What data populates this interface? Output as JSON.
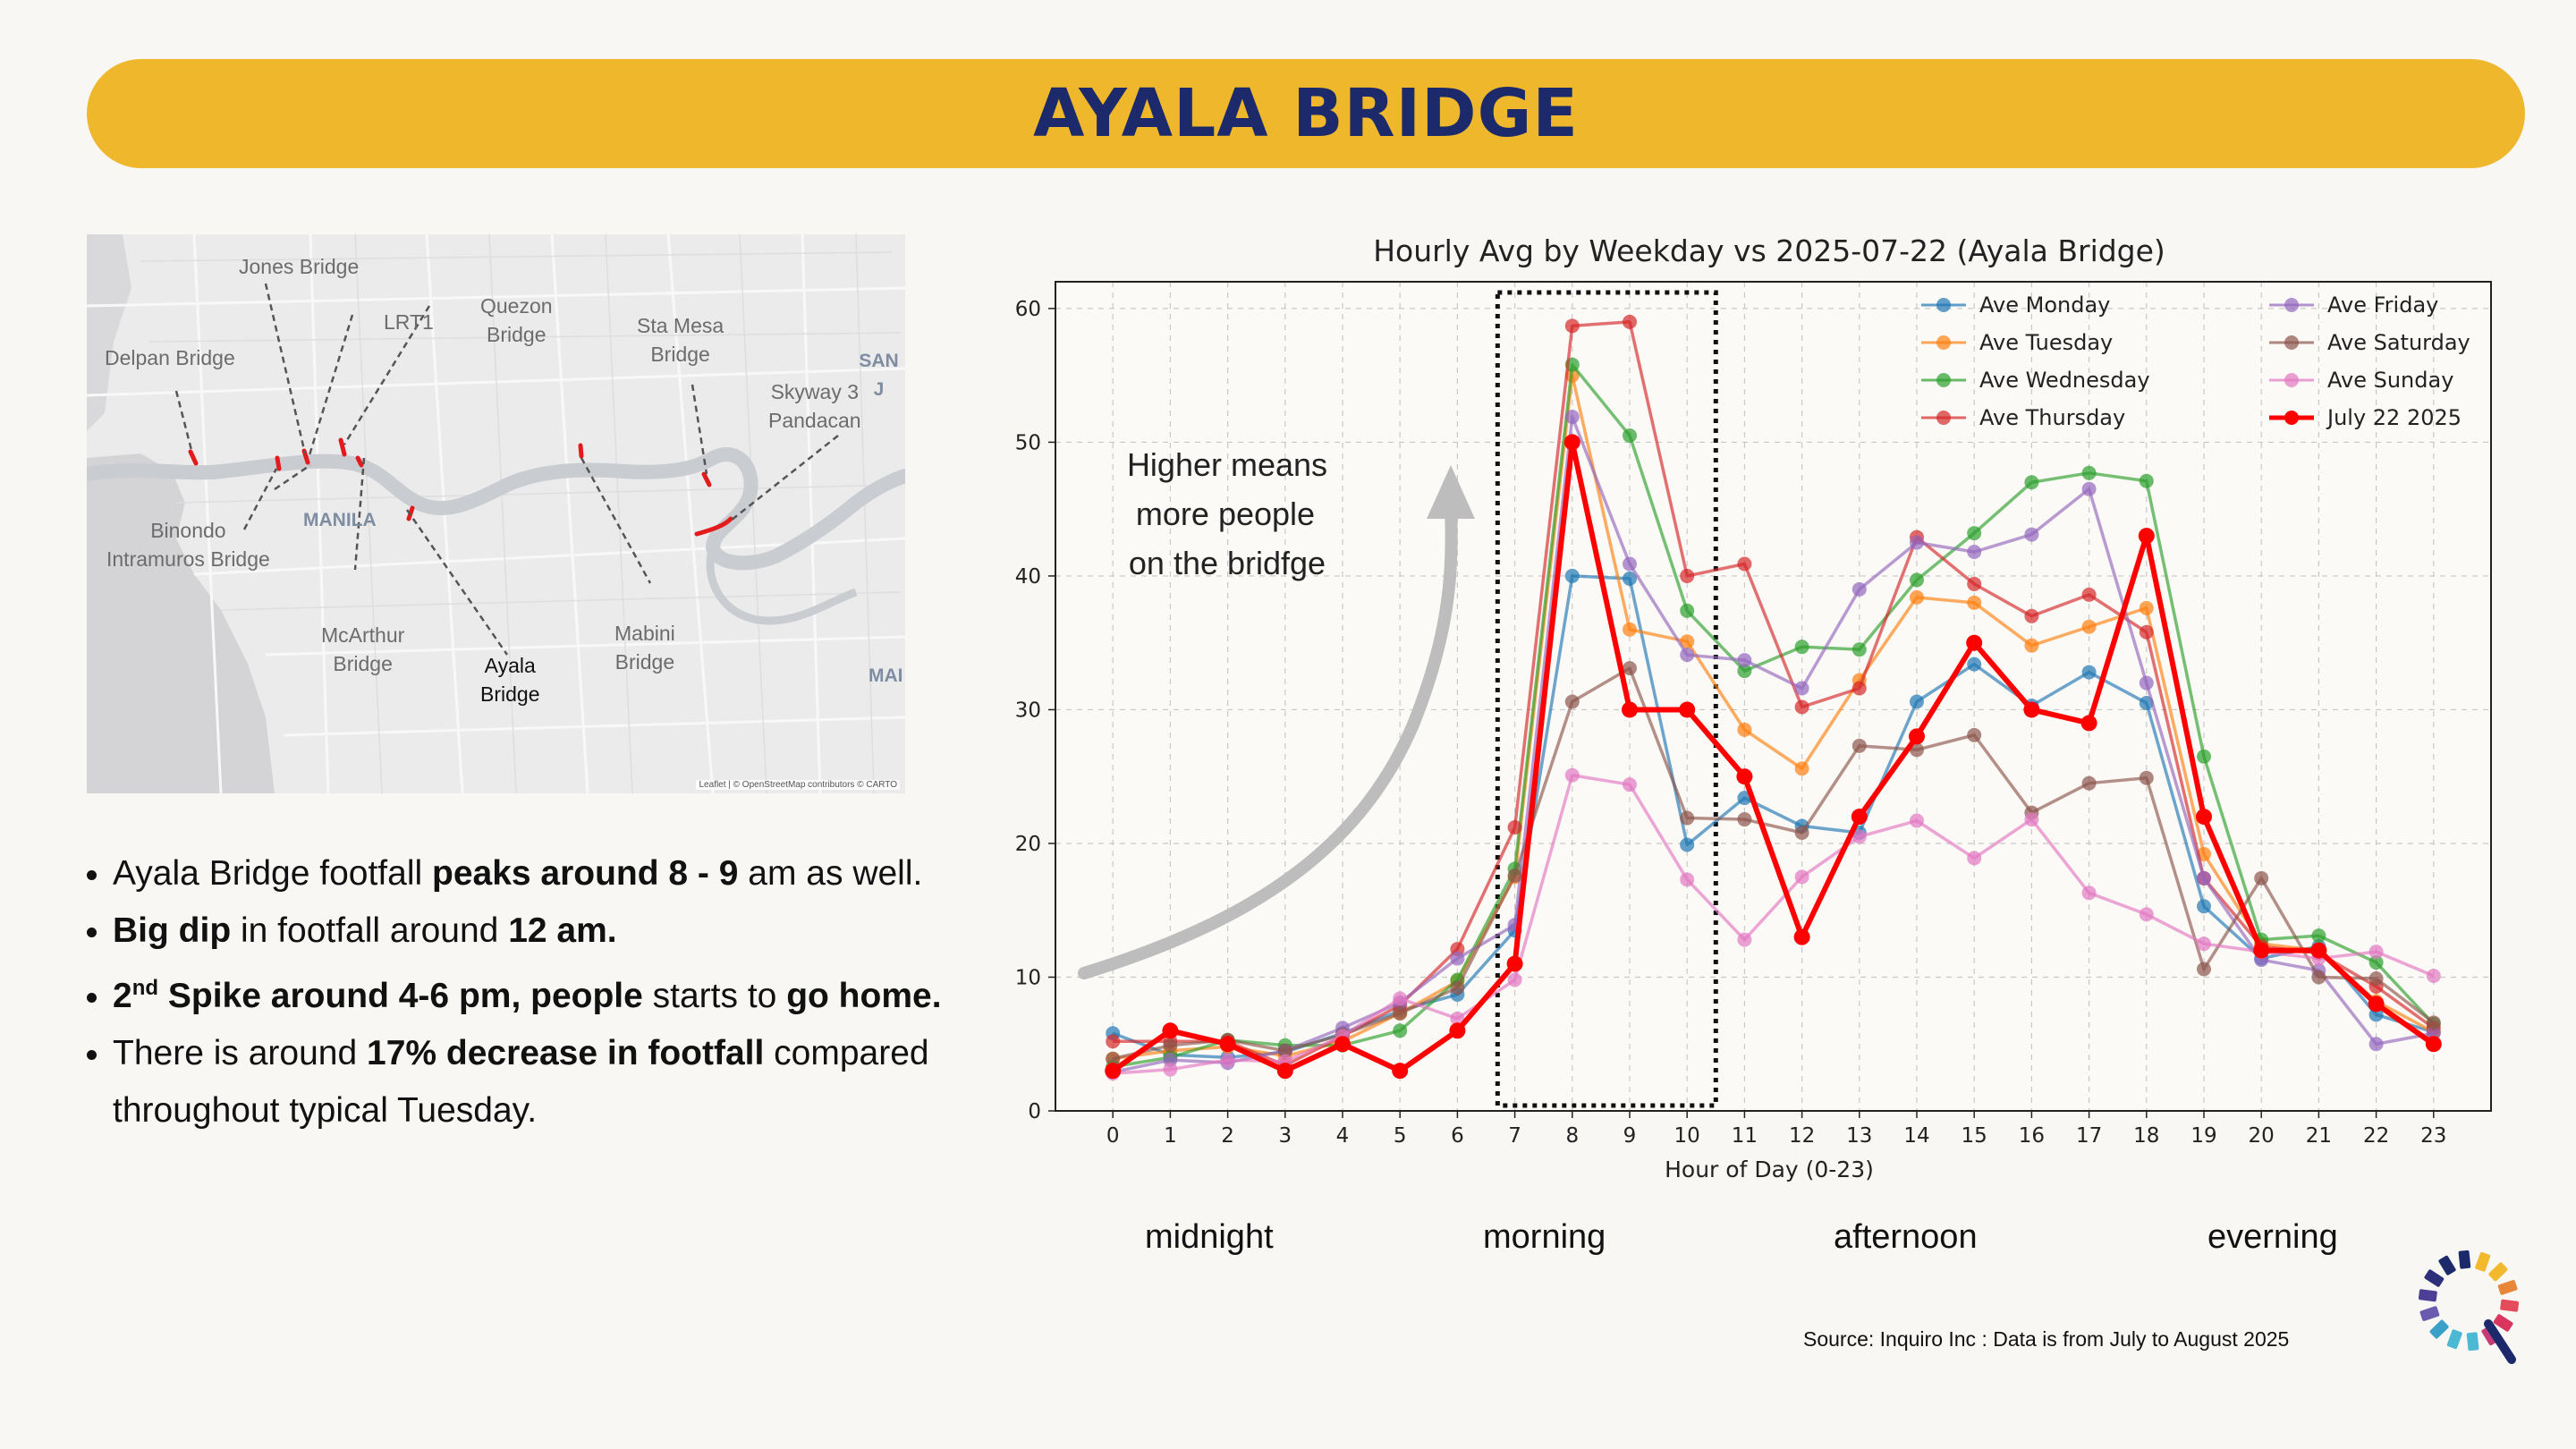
{
  "header": {
    "title": "AYALA BRIDGE"
  },
  "map": {
    "labels": {
      "jones": "Jones Bridge",
      "delpan": "Delpan Bridge",
      "lrt1": "LRT1",
      "quezon": "Quezon\nBridge",
      "stamesa": "Sta Mesa\nBridge",
      "skyway": "Skyway 3\nPandacan",
      "binondo": "Binondo\nIntramuros Bridge",
      "manila": "MANILA",
      "mcarthur": "McArthur\nBridge",
      "ayala": "Ayala\nBridge",
      "mabini": "Mabini\nBridge",
      "san": "SAN J",
      "mai": "MAI"
    },
    "attribution": "Leaflet | © OpenStreetMap contributors © CARTO"
  },
  "bullets": {
    "b1_pre": "Ayala Bridge footfall ",
    "b1_bold": "peaks around 8 - 9",
    "b1_post": " am as well.",
    "b2_bold1": "Big dip",
    "b2_mid": " in footfall around ",
    "b2_bold2": "12 am.",
    "b3_num": "2",
    "b3_sup": "nd",
    "b3_bold1": " Spike around 4-6 pm, people",
    "b3_mid": " starts to ",
    "b3_bold2": "go home.",
    "b4_pre": "There is around ",
    "b4_bold": "17% decrease in footfall",
    "b4_post": " compared throughout typical Tuesday."
  },
  "annotation": {
    "line1": "Higher means",
    "line2": "more people",
    "line3": "on the bridfge"
  },
  "periods": {
    "midnight": "midnight",
    "morning": "morning",
    "afternoon": "afternoon",
    "evening": "everning"
  },
  "source": "Source: Inquiro Inc : Data is from July to August 2025",
  "chart_data": {
    "type": "line",
    "title": "Hourly Avg by Weekday vs 2025-07-22 (Ayala Bridge)",
    "xlabel": "Hour of Day (0-23)",
    "ylabel": "",
    "x": [
      0,
      1,
      2,
      3,
      4,
      5,
      6,
      7,
      8,
      9,
      10,
      11,
      12,
      13,
      14,
      15,
      16,
      17,
      18,
      19,
      20,
      21,
      22,
      23
    ],
    "ylim": [
      0,
      62
    ],
    "yticks": [
      0,
      10,
      20,
      30,
      40,
      50,
      60
    ],
    "grid": true,
    "legend_position": "top-right",
    "highlight_box_hours": [
      7,
      10
    ],
    "series": [
      {
        "name": "Ave Monday",
        "color": "#1f77b4",
        "values": [
          5.8,
          4.2,
          4.0,
          4.4,
          5.8,
          7.5,
          8.7,
          13.5,
          40.0,
          39.8,
          19.9,
          23.4,
          21.3,
          20.8,
          30.6,
          33.4,
          30.3,
          32.8,
          30.5,
          15.3,
          11.4,
          12.3,
          7.2,
          5.9
        ]
      },
      {
        "name": "Ave Tuesday",
        "color": "#ff7f0e",
        "values": [
          3.9,
          4.5,
          4.8,
          4.1,
          5.2,
          7.3,
          9.7,
          17.5,
          55.0,
          36.0,
          35.1,
          28.5,
          25.6,
          32.2,
          38.4,
          38.0,
          34.8,
          36.2,
          37.6,
          19.2,
          12.5,
          12.0,
          8.2,
          5.9
        ]
      },
      {
        "name": "Ave Wednesday",
        "color": "#2ca02c",
        "values": [
          3.3,
          4.0,
          5.3,
          4.9,
          4.9,
          6.0,
          9.8,
          18.1,
          55.8,
          50.5,
          37.4,
          32.9,
          34.7,
          34.5,
          39.7,
          43.2,
          47.0,
          47.7,
          47.1,
          26.5,
          12.8,
          13.1,
          11.1,
          6.5
        ]
      },
      {
        "name": "Ave Thursday",
        "color": "#d62728",
        "values": [
          5.2,
          5.2,
          5.2,
          3.4,
          5.6,
          7.9,
          12.1,
          21.2,
          58.7,
          59.0,
          40.0,
          40.9,
          30.2,
          31.6,
          42.9,
          39.4,
          37.0,
          38.6,
          35.8,
          17.4,
          12.3,
          11.8,
          9.3,
          6.2
        ]
      },
      {
        "name": "Ave Friday",
        "color": "#9467bd",
        "values": [
          2.9,
          3.8,
          3.6,
          4.5,
          6.2,
          8.1,
          11.4,
          13.9,
          51.9,
          40.9,
          34.1,
          33.7,
          31.6,
          39.0,
          42.5,
          41.8,
          43.1,
          46.5,
          32.0,
          17.4,
          11.3,
          10.5,
          5.0,
          5.8
        ]
      },
      {
        "name": "Ave Saturday",
        "color": "#8c564b",
        "values": [
          3.9,
          4.9,
          5.3,
          4.5,
          5.7,
          7.3,
          9.2,
          17.6,
          30.6,
          33.1,
          21.9,
          21.8,
          20.8,
          27.3,
          27.0,
          28.1,
          22.3,
          24.5,
          24.9,
          10.6,
          17.4,
          10.0,
          9.9,
          6.6
        ]
      },
      {
        "name": "Ave Sunday",
        "color": "#e377c2",
        "values": [
          2.8,
          3.1,
          3.8,
          3.7,
          5.6,
          8.4,
          6.9,
          9.8,
          25.1,
          24.4,
          17.3,
          12.8,
          17.5,
          20.5,
          21.7,
          18.9,
          21.8,
          16.3,
          14.7,
          12.5,
          11.9,
          11.4,
          11.9,
          10.1
        ]
      },
      {
        "name": "July 22 2025",
        "color": "#ff0000",
        "highlight": true,
        "values": [
          3,
          6,
          5,
          3,
          5,
          3,
          6,
          11,
          50,
          30,
          30,
          25,
          13,
          22,
          28,
          35,
          30,
          29,
          43,
          22,
          12,
          12,
          8,
          5
        ]
      }
    ]
  }
}
